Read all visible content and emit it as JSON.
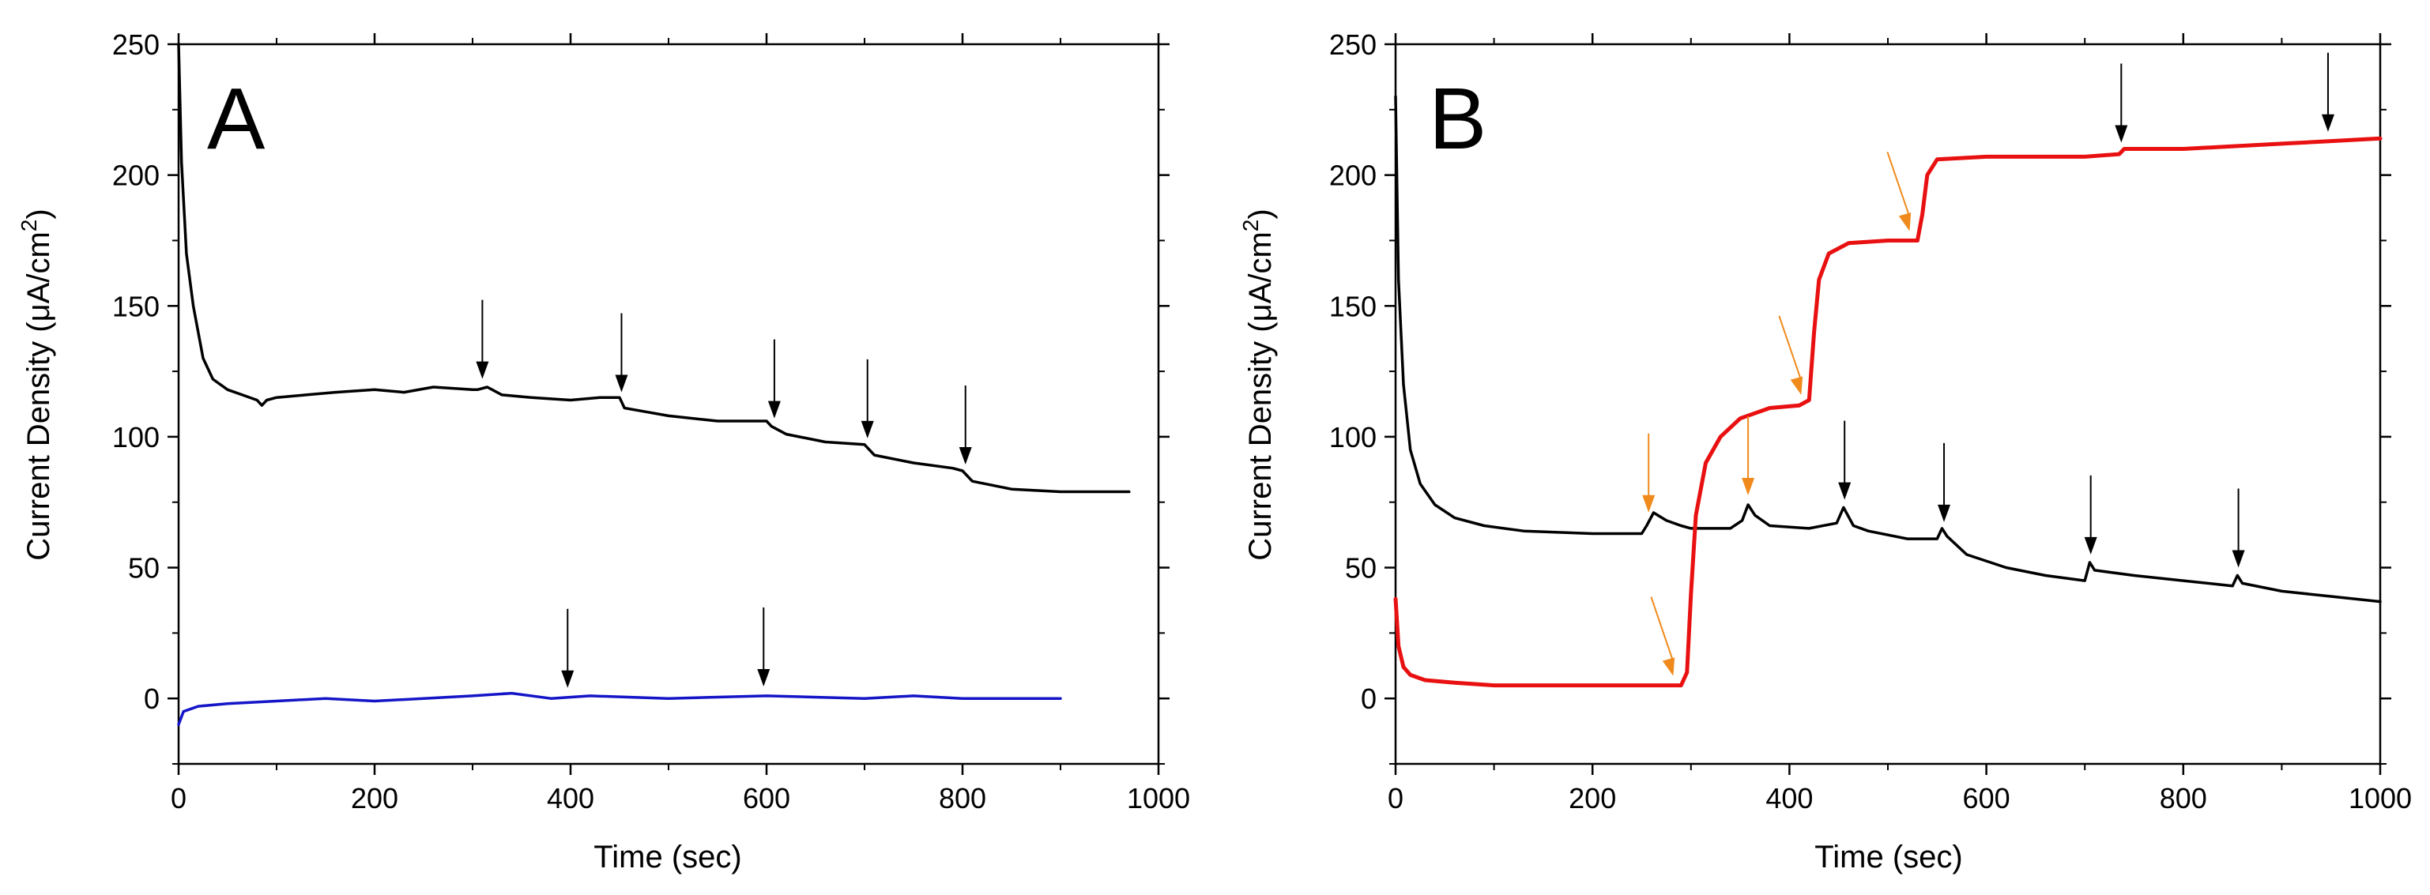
{
  "chart_data": [
    {
      "type": "line",
      "panel_label": "A",
      "xlabel": "Time (sec)",
      "ylabel_main": "Current Density (μA/cm",
      "ylabel_sup": "2",
      "ylabel_close": ")",
      "xlim": [
        0,
        1000
      ],
      "ylim": [
        -25,
        250
      ],
      "xticks": [
        "0",
        "200",
        "400",
        "600",
        "800",
        "1000"
      ],
      "yticks": [
        "0",
        "50",
        "100",
        "150",
        "200",
        "250"
      ],
      "series": [
        {
          "name": "black trace",
          "color": "#000000",
          "points": [
            [
              0,
              250
            ],
            [
              3,
              205
            ],
            [
              8,
              170
            ],
            [
              15,
              150
            ],
            [
              25,
              130
            ],
            [
              35,
              122
            ],
            [
              50,
              118
            ],
            [
              65,
              116
            ],
            [
              80,
              114
            ],
            [
              85,
              112
            ],
            [
              90,
              114
            ],
            [
              100,
              115
            ],
            [
              130,
              116
            ],
            [
              160,
              117
            ],
            [
              200,
              118
            ],
            [
              230,
              117
            ],
            [
              260,
              119
            ],
            [
              300,
              118
            ],
            [
              305,
              118
            ],
            [
              315,
              119
            ],
            [
              330,
              116
            ],
            [
              360,
              115
            ],
            [
              400,
              114
            ],
            [
              430,
              115
            ],
            [
              450,
              115
            ],
            [
              455,
              111
            ],
            [
              470,
              110
            ],
            [
              500,
              108
            ],
            [
              550,
              106
            ],
            [
              600,
              106
            ],
            [
              605,
              104
            ],
            [
              620,
              101
            ],
            [
              660,
              98
            ],
            [
              700,
              97
            ],
            [
              710,
              93
            ],
            [
              750,
              90
            ],
            [
              790,
              88
            ],
            [
              800,
              87
            ],
            [
              810,
              83
            ],
            [
              850,
              80
            ],
            [
              900,
              79
            ],
            [
              940,
              79
            ],
            [
              970,
              79
            ]
          ]
        },
        {
          "name": "blue trace",
          "color": "#1515c8",
          "points": [
            [
              0,
              -10
            ],
            [
              5,
              -5
            ],
            [
              20,
              -3
            ],
            [
              50,
              -2
            ],
            [
              100,
              -1
            ],
            [
              150,
              0
            ],
            [
              200,
              -1
            ],
            [
              250,
              0
            ],
            [
              300,
              1
            ],
            [
              340,
              2
            ],
            [
              380,
              0
            ],
            [
              420,
              1
            ],
            [
              500,
              0
            ],
            [
              600,
              1
            ],
            [
              700,
              0
            ],
            [
              750,
              1
            ],
            [
              800,
              0
            ],
            [
              850,
              0
            ],
            [
              900,
              0
            ]
          ]
        }
      ],
      "arrows": [
        {
          "x": 310,
          "color": "#000000"
        },
        {
          "x": 452,
          "color": "#000000"
        },
        {
          "x": 608,
          "color": "#000000"
        },
        {
          "x": 703,
          "color": "#000000"
        },
        {
          "x": 803,
          "color": "#000000"
        },
        {
          "x": 397,
          "color": "#000000"
        },
        {
          "x": 597,
          "color": "#000000"
        }
      ]
    },
    {
      "type": "line",
      "panel_label": "B",
      "xlabel": "Time (sec)",
      "ylabel_main": "Current Density (μA/cm",
      "ylabel_sup": "2",
      "ylabel_close": ")",
      "xlim": [
        0,
        1000
      ],
      "ylim": [
        -25,
        250
      ],
      "xticks": [
        "0",
        "200",
        "400",
        "600",
        "800",
        "1000"
      ],
      "yticks": [
        "0",
        "50",
        "100",
        "150",
        "200",
        "250"
      ],
      "series": [
        {
          "name": "black trace",
          "color": "#000000",
          "points": [
            [
              0,
              230
            ],
            [
              3,
              160
            ],
            [
              8,
              120
            ],
            [
              15,
              95
            ],
            [
              25,
              82
            ],
            [
              40,
              74
            ],
            [
              60,
              69
            ],
            [
              90,
              66
            ],
            [
              130,
              64
            ],
            [
              200,
              63
            ],
            [
              250,
              63
            ],
            [
              255,
              66
            ],
            [
              262,
              71
            ],
            [
              275,
              68
            ],
            [
              290,
              66
            ],
            [
              300,
              65
            ],
            [
              340,
              65
            ],
            [
              352,
              68
            ],
            [
              358,
              74
            ],
            [
              365,
              70
            ],
            [
              380,
              66
            ],
            [
              420,
              65
            ],
            [
              448,
              67
            ],
            [
              455,
              73
            ],
            [
              465,
              66
            ],
            [
              480,
              64
            ],
            [
              520,
              61
            ],
            [
              550,
              61
            ],
            [
              555,
              65
            ],
            [
              560,
              62
            ],
            [
              580,
              55
            ],
            [
              620,
              50
            ],
            [
              660,
              47
            ],
            [
              700,
              45
            ],
            [
              705,
              52
            ],
            [
              710,
              49
            ],
            [
              750,
              47
            ],
            [
              800,
              45
            ],
            [
              850,
              43
            ],
            [
              855,
              47
            ],
            [
              860,
              44
            ],
            [
              900,
              41
            ],
            [
              950,
              39
            ],
            [
              1000,
              37
            ]
          ]
        },
        {
          "name": "red trace",
          "color": "#e81010",
          "points": [
            [
              0,
              38
            ],
            [
              3,
              20
            ],
            [
              8,
              12
            ],
            [
              15,
              9
            ],
            [
              30,
              7
            ],
            [
              60,
              6
            ],
            [
              100,
              5
            ],
            [
              200,
              5
            ],
            [
              290,
              5
            ],
            [
              296,
              10
            ],
            [
              300,
              40
            ],
            [
              305,
              70
            ],
            [
              315,
              90
            ],
            [
              330,
              100
            ],
            [
              350,
              107
            ],
            [
              380,
              111
            ],
            [
              410,
              112
            ],
            [
              420,
              114
            ],
            [
              425,
              140
            ],
            [
              430,
              160
            ],
            [
              440,
              170
            ],
            [
              460,
              174
            ],
            [
              500,
              175
            ],
            [
              530,
              175
            ],
            [
              535,
              185
            ],
            [
              540,
              200
            ],
            [
              550,
              206
            ],
            [
              600,
              207
            ],
            [
              700,
              207
            ],
            [
              735,
              208
            ],
            [
              740,
              210
            ],
            [
              800,
              210
            ],
            [
              900,
              212
            ],
            [
              950,
              213
            ],
            [
              1000,
              214
            ]
          ]
        }
      ],
      "arrows": [
        {
          "x": 257,
          "color": "#f08a1c"
        },
        {
          "x": 358,
          "color": "#f08a1c"
        },
        {
          "x": 456,
          "color": "#000000"
        },
        {
          "x": 557,
          "color": "#000000"
        },
        {
          "x": 706,
          "color": "#000000"
        },
        {
          "x": 856,
          "color": "#000000"
        },
        {
          "x": 737,
          "color": "#000000"
        },
        {
          "x": 947,
          "color": "#000000"
        },
        {
          "x": 282,
          "color": "#f08a1c"
        },
        {
          "x": 412,
          "color": "#f08a1c"
        },
        {
          "x": 522,
          "color": "#f08a1c"
        }
      ]
    }
  ]
}
